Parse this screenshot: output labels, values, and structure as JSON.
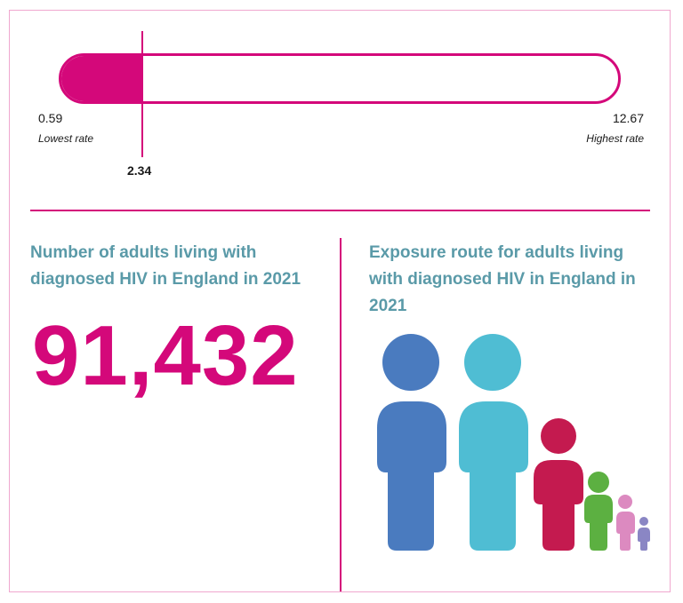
{
  "rate_bar": {
    "min_value": "0.59",
    "min_caption": "Lowest rate",
    "max_value": "12.67",
    "max_caption": "Highest rate",
    "marker_value": "2.34",
    "marker_fraction": 0.145,
    "color": "#d4087a"
  },
  "left_panel": {
    "heading_line1": "Number of adults living with",
    "heading_line2": "diagnosed HIV in England in 2021",
    "big_number": "91,432"
  },
  "right_panel": {
    "heading_line1": "Exposure route for adults living",
    "heading_line2": "with diagnosed HIV in England in",
    "heading_line3": "2021",
    "figures": [
      {
        "icon": "person-icon",
        "color": "#4a7bbf"
      },
      {
        "icon": "person-icon",
        "color": "#4fbdd3"
      },
      {
        "icon": "person-icon",
        "color": "#c41a4f"
      },
      {
        "icon": "person-icon",
        "color": "#5cb041"
      },
      {
        "icon": "person-icon",
        "color": "#dc8ac0"
      },
      {
        "icon": "person-icon",
        "color": "#8a86c4"
      }
    ]
  }
}
